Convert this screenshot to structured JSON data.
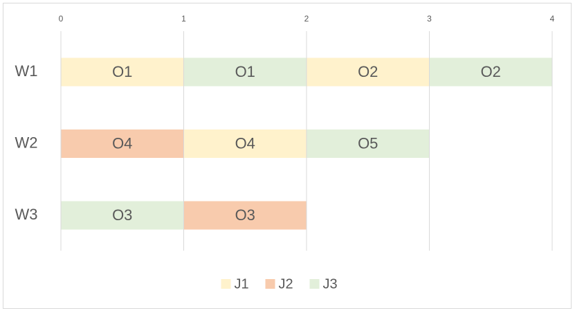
{
  "chart_data": {
    "type": "gantt",
    "categories": [
      "W1",
      "W2",
      "W3"
    ],
    "xlim": [
      0,
      4
    ],
    "xticks": [
      0,
      1,
      2,
      3,
      4
    ],
    "grid": true,
    "legend": "bottom",
    "series": [
      {
        "name": "J1",
        "color": "#fff2cc",
        "tasks": [
          {
            "row": "W1",
            "label": "O1",
            "start": 0,
            "end": 1
          },
          {
            "row": "W1",
            "label": "O2",
            "start": 2,
            "end": 3
          },
          {
            "row": "W2",
            "label": "O4",
            "start": 1,
            "end": 2
          }
        ]
      },
      {
        "name": "J2",
        "color": "#f8cbad",
        "tasks": [
          {
            "row": "W2",
            "label": "O4",
            "start": 0,
            "end": 1
          },
          {
            "row": "W3",
            "label": "O3",
            "start": 1,
            "end": 2
          }
        ]
      },
      {
        "name": "J3",
        "color": "#e2efda",
        "tasks": [
          {
            "row": "W1",
            "label": "O1",
            "start": 1,
            "end": 2
          },
          {
            "row": "W1",
            "label": "O2",
            "start": 3,
            "end": 4
          },
          {
            "row": "W2",
            "label": "O5",
            "start": 2,
            "end": 3
          },
          {
            "row": "W3",
            "label": "O3",
            "start": 0,
            "end": 1
          }
        ]
      }
    ]
  }
}
